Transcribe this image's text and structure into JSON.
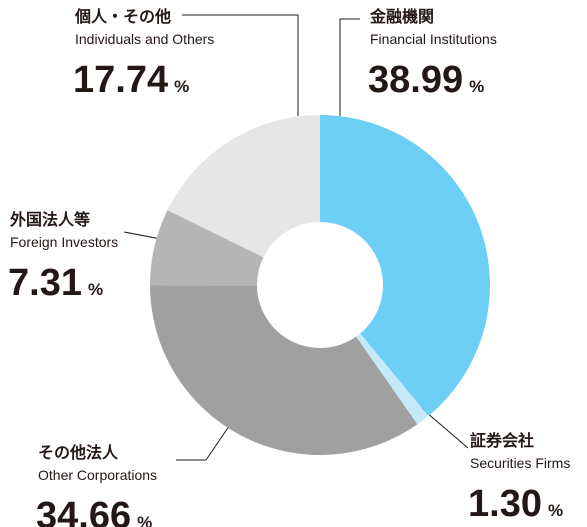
{
  "chart_data": {
    "type": "donut",
    "categories": [
      "金融機関",
      "証券会社",
      "その他法人",
      "外国法人等",
      "個人・その他"
    ],
    "subcategories": [
      "Financial Institutions",
      "Securities Firms",
      "Other Corporations",
      "Foreign Investors",
      "Individuals and Others"
    ],
    "values": [
      38.99,
      1.3,
      34.66,
      7.31,
      17.74
    ],
    "value_labels": [
      "38.99",
      "1.30",
      "34.66",
      "7.31",
      "17.74"
    ],
    "unit": "%",
    "colors": [
      "#6dcff6",
      "#c4e9f8",
      "#a0a0a0",
      "#b5b5b6",
      "#e6e6e7"
    ]
  }
}
